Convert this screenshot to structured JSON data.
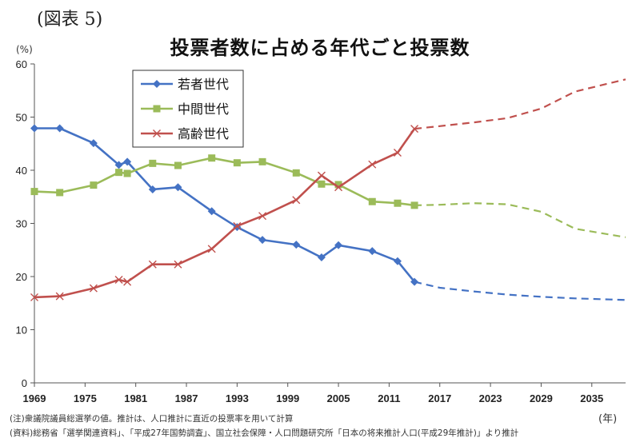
{
  "figure_label": "(図表 5)",
  "title": "投票者数に占める年代ごと投票数",
  "notes": [
    "(注)衆議院議員総選挙の値。推計は、人口推計に直近の投票率を用いて計算",
    "(資料)総務省「選挙関連資料」、「平成27年国勢調査」、国立社会保障・人口問題研究所「日本の将来推計人口(平成29年推計)」より推計"
  ],
  "chart_data": {
    "type": "line",
    "title": "投票者数に占める年代ごと投票数",
    "ylabel": "(%)",
    "xlabel": "(年)",
    "xlim": [
      1969,
      2039
    ],
    "ylim": [
      0,
      60
    ],
    "yticks": [
      0,
      10,
      20,
      30,
      40,
      50,
      60
    ],
    "xticks": [
      1969,
      1975,
      1981,
      1987,
      1993,
      1999,
      2005,
      2011,
      2017,
      2023,
      2029,
      2035
    ],
    "grid": false,
    "legend": "top-left",
    "colors": {
      "young": "#4472C4",
      "middle": "#9BBB59",
      "old": "#C0504D",
      "axis": "#555555"
    },
    "series": [
      {
        "name": "若者世代",
        "marker": "diamond",
        "x": [
          1969,
          1972,
          1976,
          1979,
          1980,
          1983,
          1986,
          1990,
          1993,
          1996,
          2000,
          2003,
          2005,
          2009,
          2012,
          2014
        ],
        "values": [
          47.9,
          47.9,
          45.1,
          41.0,
          41.6,
          36.4,
          36.8,
          32.3,
          29.3,
          26.9,
          26.0,
          23.6,
          25.9,
          24.8,
          22.9,
          19.0
        ],
        "projection_x": [
          2014,
          2017,
          2021,
          2025,
          2029,
          2033,
          2039
        ],
        "projection_values": [
          19.0,
          17.9,
          17.2,
          16.6,
          16.2,
          15.9,
          15.6
        ]
      },
      {
        "name": "中間世代",
        "marker": "square",
        "x": [
          1969,
          1972,
          1976,
          1979,
          1980,
          1983,
          1986,
          1990,
          1993,
          1996,
          2000,
          2003,
          2005,
          2009,
          2012,
          2014
        ],
        "values": [
          36.0,
          35.8,
          37.2,
          39.6,
          39.4,
          41.3,
          40.9,
          42.3,
          41.4,
          41.6,
          39.5,
          37.4,
          37.3,
          34.1,
          33.8,
          33.4
        ],
        "projection_x": [
          2014,
          2017,
          2021,
          2025,
          2029,
          2033,
          2039
        ],
        "projection_values": [
          33.4,
          33.5,
          33.8,
          33.6,
          32.2,
          29.0,
          27.4
        ]
      },
      {
        "name": "高齢世代",
        "marker": "x",
        "x": [
          1969,
          1972,
          1976,
          1979,
          1980,
          1983,
          1986,
          1990,
          1993,
          1996,
          2000,
          2003,
          2005,
          2009,
          2012,
          2014
        ],
        "values": [
          16.1,
          16.3,
          17.8,
          19.4,
          19.0,
          22.3,
          22.3,
          25.2,
          29.5,
          31.4,
          34.4,
          39.0,
          36.8,
          41.1,
          43.3,
          47.8
        ],
        "projection_x": [
          2014,
          2017,
          2021,
          2025,
          2029,
          2033,
          2039
        ],
        "projection_values": [
          47.8,
          48.3,
          49.0,
          49.8,
          51.6,
          54.8,
          57.1
        ]
      }
    ]
  }
}
